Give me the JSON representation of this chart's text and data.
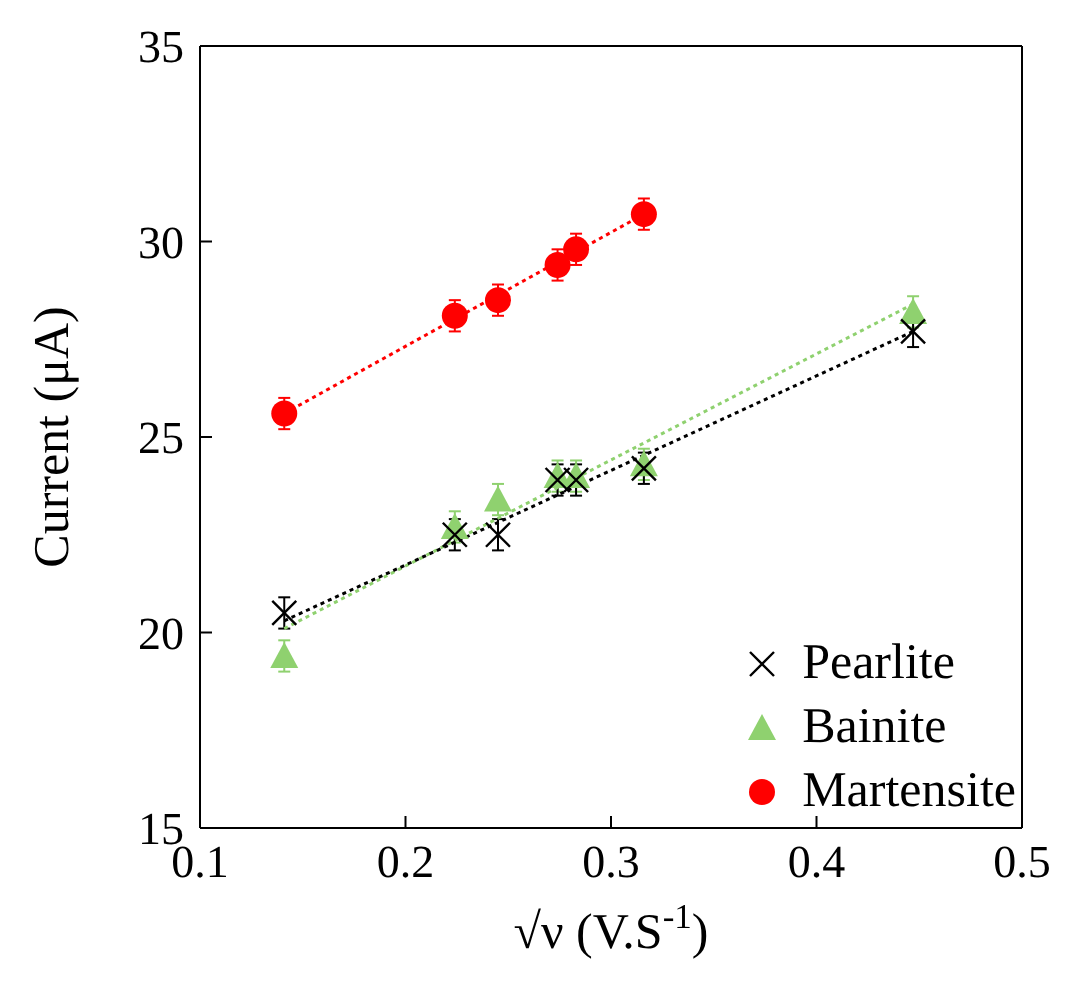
{
  "chart_data": {
    "type": "scatter",
    "xlabel": "√ν (V.S$^{-1}$)",
    "ylabel": "Current (μA)",
    "xlim": [
      0.1,
      0.5
    ],
    "xticks": [
      0.1,
      0.2,
      0.3,
      0.4,
      0.5
    ],
    "ylim": [
      15,
      35
    ],
    "yticks": [
      15,
      20,
      25,
      30,
      35
    ],
    "legend": "bottom right",
    "series": [
      {
        "name": "Pearlite",
        "color": "#000000",
        "marker": "cross",
        "x": [
          0.141,
          0.224,
          0.245,
          0.274,
          0.283,
          0.316,
          0.447
        ],
        "values": [
          20.5,
          22.5,
          22.5,
          23.9,
          23.9,
          24.2,
          27.7
        ],
        "errors": [
          0.4,
          0.4,
          0.4,
          0.4,
          0.4,
          0.4,
          0.4
        ]
      },
      {
        "name": "Bainite",
        "color": "#8fd16f",
        "marker": "triangle",
        "x": [
          0.141,
          0.224,
          0.245,
          0.274,
          0.283,
          0.316,
          0.447
        ],
        "values": [
          19.4,
          22.7,
          23.4,
          24.0,
          24.0,
          24.3,
          28.2
        ],
        "errors": [
          0.4,
          0.4,
          0.4,
          0.4,
          0.4,
          0.4,
          0.4
        ]
      },
      {
        "name": "Martensite",
        "color": "#ff0000",
        "marker": "circle",
        "x": [
          0.141,
          0.224,
          0.245,
          0.274,
          0.283,
          0.316
        ],
        "values": [
          25.6,
          28.1,
          28.5,
          29.4,
          29.8,
          30.7
        ],
        "errors": [
          0.4,
          0.4,
          0.4,
          0.4,
          0.4,
          0.4
        ]
      },
      {
        "type": "line",
        "color": "#000000",
        "line_style": "dotted",
        "marker": "none",
        "x": [
          0.141,
          0.447
        ],
        "values": [
          20.3,
          27.7
        ]
      },
      {
        "type": "line",
        "color": "#8fd16f",
        "line_style": "dotted",
        "marker": "none",
        "x": [
          0.141,
          0.447
        ],
        "values": [
          20.1,
          28.4
        ]
      },
      {
        "type": "line",
        "color": "#ff0000",
        "line_style": "dotted",
        "marker": "none",
        "x": [
          0.141,
          0.316
        ],
        "values": [
          25.6,
          30.7
        ]
      }
    ]
  }
}
